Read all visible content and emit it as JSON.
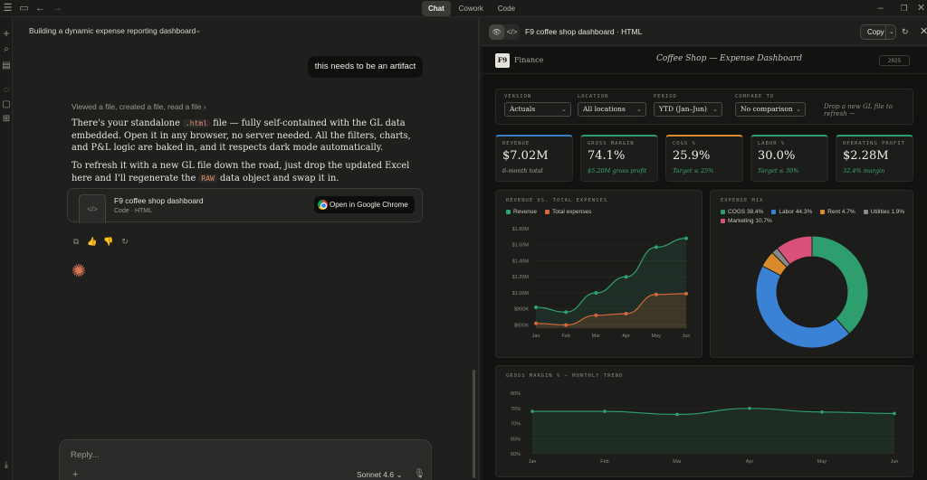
{
  "topbar": {
    "tabs": [
      {
        "label": "Chat",
        "active": true
      },
      {
        "label": "Cowork",
        "active": false
      },
      {
        "label": "Code",
        "active": false
      }
    ]
  },
  "chat": {
    "conversation_title": "Building a dynamic expense reporting dashboard",
    "user_message": "this needs to be an artifact",
    "tool_summary": "Viewed a file, created a file, read a file",
    "paragraph1": {
      "before": "There's your standalone ",
      "code": ".html",
      "after": " file — fully self-contained with the GL data embedded. Open it in any browser, no server needed. All the filters, charts, and P&L logic are baked in, and it respects dark mode automatically."
    },
    "paragraph2": {
      "before": "To refresh it with a new GL file down the road, just drop the updated Excel here and I'll regenerate the ",
      "code": "RAW",
      "after": " data object and swap it in."
    },
    "file_card": {
      "name": "F9 coffee shop dashboard",
      "type": "Code · HTML",
      "open_label": "Open in Google Chrome"
    },
    "reply_placeholder": "Reply...",
    "model": "Sonnet 4.6"
  },
  "artifact": {
    "title": "F9 coffee shop dashboard · HTML",
    "copy_label": "Copy"
  },
  "dashboard": {
    "logo": "F9",
    "section": "Finance",
    "title": "Coffee Shop — Expense Dashboard",
    "year": "2025",
    "filters": [
      {
        "label": "VERSION",
        "value": "Actuals"
      },
      {
        "label": "LOCATION",
        "value": "All locations"
      },
      {
        "label": "PERIOD",
        "value": "YTD (Jan–Jun)"
      },
      {
        "label": "COMPARE TO",
        "value": "No comparison"
      }
    ],
    "drop_hint": "Drop a new GL file to refresh →",
    "kpis": [
      {
        "label": "REVENUE",
        "value": "$7.02M",
        "sub": "6-month total",
        "accent": "#3b82c4",
        "sub_green": false
      },
      {
        "label": "GROSS MARGIN",
        "value": "74.1%",
        "sub": "$5.20M gross profit",
        "accent": "#2e9e6e",
        "sub_green": true
      },
      {
        "label": "COGS %",
        "value": "25.9%",
        "sub": "Target ≤ 25%",
        "accent": "#d98b2b",
        "sub_green": true
      },
      {
        "label": "LABOR %",
        "value": "30.0%",
        "sub": "Target ≤ 30%",
        "accent": "#2e9e6e",
        "sub_green": true
      },
      {
        "label": "OPERATING PROFIT",
        "value": "$2.28M",
        "sub": "32.4% margin",
        "accent": "#2e9e6e",
        "sub_green": true
      }
    ],
    "colors": {
      "revenue": "#2ea36f",
      "expenses": "#d4693a",
      "cogs": "#2e9e6e",
      "labor": "#3b82d4",
      "rent": "#d98b2b",
      "utilities": "#8a8a8a",
      "marketing": "#d9507a"
    }
  },
  "chart_data": [
    {
      "type": "line",
      "title": "REVENUE VS. TOTAL EXPENSES",
      "categories": [
        "Jan",
        "Feb",
        "Mar",
        "Apr",
        "May",
        "Jun"
      ],
      "series": [
        {
          "name": "Revenue",
          "values": [
            820000,
            760000,
            1000000,
            1200000,
            1570000,
            1680000
          ]
        },
        {
          "name": "Total expenses",
          "values": [
            620000,
            600000,
            720000,
            740000,
            980000,
            990000
          ]
        }
      ],
      "ytick_labels": [
        "$600K",
        "$800K",
        "$1.00M",
        "$1.20M",
        "$1.40M",
        "$1.60M",
        "$1.80M"
      ],
      "ylim": [
        560000,
        1800000
      ],
      "legend": "top-left"
    },
    {
      "type": "pie",
      "title": "EXPENSE MIX",
      "labels": [
        "COGS 38.4%",
        "Labor 44.3%",
        "Rent 4.7%",
        "Utilities 1.9%",
        "Marketing 10.7%"
      ],
      "values": [
        38.4,
        44.3,
        4.7,
        1.9,
        10.7
      ],
      "legend": "top"
    },
    {
      "type": "area",
      "title": "GROSS MARGIN % — MONTHLY TREND",
      "categories": [
        "Jan",
        "Feb",
        "Mar",
        "Apr",
        "May",
        "Jun"
      ],
      "series": [
        {
          "values": [
            74.0,
            74.0,
            73.0,
            75.0,
            73.8,
            73.3
          ]
        }
      ],
      "ytick_labels": [
        "60%",
        "65%",
        "70%",
        "75%",
        "80%"
      ],
      "ylim": [
        60,
        80
      ]
    }
  ]
}
